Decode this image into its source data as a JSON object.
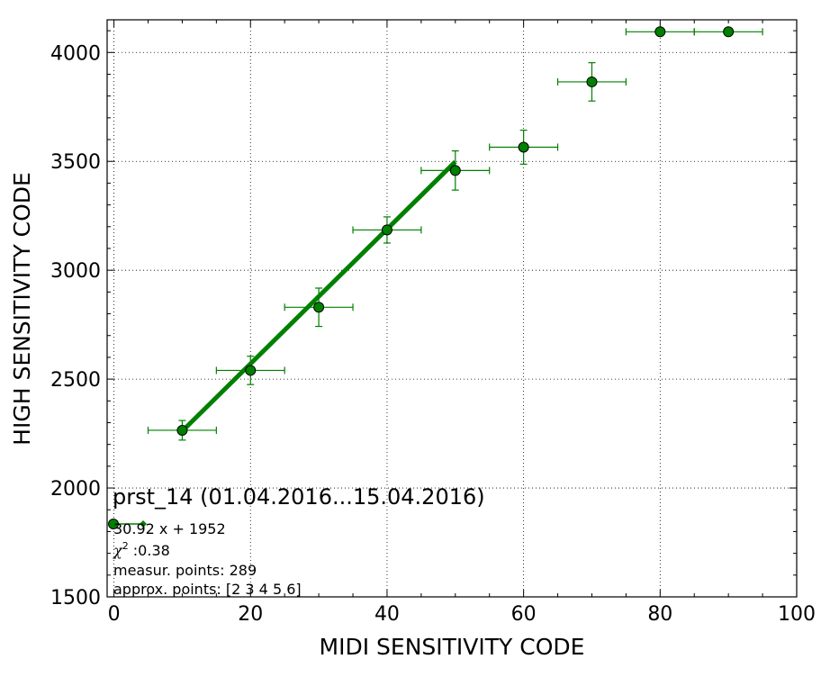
{
  "chart_data": {
    "type": "scatter",
    "title": "prst_14 (01.04.2016...15.04.2016)",
    "xlabel": "MIDI SENSITIVITY CODE",
    "ylabel": "HIGH SENSITIVITY CODE",
    "xlim": [
      -1,
      100
    ],
    "ylim": [
      1500,
      4150
    ],
    "xticks": [
      0,
      20,
      40,
      60,
      80,
      100
    ],
    "yticks": [
      1500,
      2000,
      2500,
      3000,
      3500,
      4000
    ],
    "grid": true,
    "color": "#008000",
    "points": [
      {
        "x": 10,
        "y": 2265,
        "xerr": 5,
        "yerr": 45
      },
      {
        "x": 20,
        "y": 2540,
        "xerr": 5,
        "yerr": 65
      },
      {
        "x": 30,
        "y": 2830,
        "xerr": 5,
        "yerr": 88
      },
      {
        "x": 40,
        "y": 3185,
        "xerr": 5,
        "yerr": 60
      },
      {
        "x": 50,
        "y": 3458,
        "xerr": 5,
        "yerr": 90
      },
      {
        "x": 60,
        "y": 3565,
        "xerr": 5,
        "yerr": 78
      },
      {
        "x": 70,
        "y": 3865,
        "xerr": 5,
        "yerr": 88
      },
      {
        "x": 80,
        "y": 4095,
        "xerr": 5,
        "yerr": 0
      },
      {
        "x": 90,
        "y": 4095,
        "xerr": 5,
        "yerr": 0
      }
    ],
    "fit_line": {
      "slope": 30.92,
      "intercept": 1952,
      "x_range": [
        10,
        50
      ]
    },
    "legend": {
      "equation": "30.92 x + 1952",
      "chi2_label": "χ",
      "chi2_sup": "2",
      "chi2_value": " :0.38",
      "measur_points": "measur. points: 289",
      "approx_points": "approx. points: [2 3 4 5 6]"
    }
  }
}
